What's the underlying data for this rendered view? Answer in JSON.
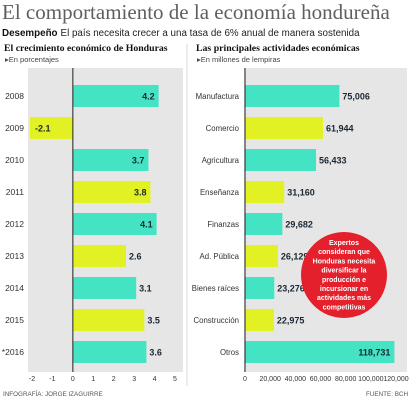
{
  "header": {
    "title": "El comportamiento de la economía hondureña",
    "subtitle_lead": "Desempeño",
    "subtitle_text": "El país necesita crecer a una tasa de 6% anual de manera sostenida"
  },
  "colors": {
    "teal": "#44e3c4",
    "yellow": "#e2f123",
    "panel": "#e6e6e6",
    "callout": "#e3202b",
    "title_gray": "#5f5f5f"
  },
  "chart_data": [
    {
      "type": "bar",
      "orientation": "horizontal",
      "title": "El crecimiento económico de Honduras",
      "subtitle": "▸En porcentajes",
      "categories": [
        "2008",
        "2009",
        "2010",
        "2011",
        "2012",
        "2013",
        "2014",
        "2015",
        "*2016"
      ],
      "values": [
        4.2,
        -2.1,
        3.7,
        3.8,
        4.1,
        2.6,
        3.1,
        3.5,
        3.6
      ],
      "value_labels": [
        "4.2",
        "-2.1",
        "3.7",
        "3.8",
        "4.1",
        "2.6",
        "3.1",
        "3.5",
        "3.6"
      ],
      "bar_colors": [
        "#44e3c4",
        "#e2f123",
        "#44e3c4",
        "#e2f123",
        "#44e3c4",
        "#e2f123",
        "#44e3c4",
        "#e2f123",
        "#44e3c4"
      ],
      "xlim": [
        -2,
        5
      ],
      "xticks": [
        -2,
        -1,
        0,
        1,
        2,
        3,
        4,
        5
      ],
      "xtick_labels": [
        "-2",
        "-1",
        "0",
        "1",
        "2",
        "3",
        "4",
        "5"
      ],
      "grid": false
    },
    {
      "type": "bar",
      "orientation": "horizontal",
      "title": "Las principales actividades económicas",
      "subtitle": "▸En millones de lempiras",
      "categories": [
        "Manufactura",
        "Comercio",
        "Agricultura",
        "Enseñanza",
        "Finanzas",
        "Ad. Pública",
        "Bienes raíces",
        "Construcción",
        "Otros"
      ],
      "values": [
        75006,
        61944,
        56433,
        31160,
        29682,
        26129,
        23276,
        22975,
        118731
      ],
      "value_labels": [
        "75,006",
        "61,944",
        "56,433",
        "31,160",
        "29,682",
        "26,129",
        "23,276",
        "22,975",
        "118,731"
      ],
      "bar_colors": [
        "#44e3c4",
        "#e2f123",
        "#44e3c4",
        "#e2f123",
        "#44e3c4",
        "#e2f123",
        "#44e3c4",
        "#e2f123",
        "#44e3c4"
      ],
      "xlim": [
        0,
        120000
      ],
      "xticks": [
        0,
        20000,
        40000,
        60000,
        80000,
        100000,
        120000
      ],
      "xtick_labels": [
        "0",
        "20,000",
        "40,000",
        "60,000",
        "80,000",
        "100,000",
        "120,000"
      ],
      "grid": false
    }
  ],
  "callout": {
    "lines": [
      "Expertos",
      "consideran que",
      "Honduras necesita",
      "diversificar la",
      "producción e",
      "incursionar en",
      "actividades más",
      "competitivas"
    ]
  },
  "footer": {
    "credit": "INFOGRAFÍA: JORGE IZAGUIRRE",
    "source": "FUENTE: BCH"
  }
}
